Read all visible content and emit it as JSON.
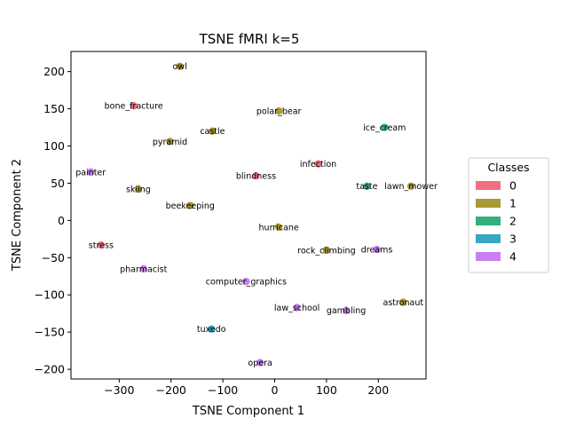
{
  "chart_data": {
    "type": "scatter",
    "title": "TSNE fMRI k=5",
    "xlabel": "TSNE Component 1",
    "ylabel": "TSNE Component 2",
    "xlim": [
      -393,
      292
    ],
    "ylim": [
      -213,
      227
    ],
    "xticks": [
      -300,
      -200,
      -100,
      0,
      100,
      200
    ],
    "yticks": [
      -200,
      -150,
      -100,
      -50,
      0,
      50,
      100,
      150,
      200
    ],
    "xtick_labels": [
      "−300",
      "−200",
      "−100",
      "0",
      "100",
      "200"
    ],
    "ytick_labels": [
      "−200",
      "−150",
      "−100",
      "−50",
      "0",
      "50",
      "100",
      "150",
      "200"
    ],
    "grid": false,
    "legend": {
      "title": "Classes",
      "placement": "right",
      "entries": [
        {
          "label": "0",
          "color": "#f07080"
        },
        {
          "label": "1",
          "color": "#a99a33"
        },
        {
          "label": "2",
          "color": "#33b07a"
        },
        {
          "label": "3",
          "color": "#38a8c0"
        },
        {
          "label": "4",
          "color": "#c87ef0"
        }
      ]
    },
    "points": [
      {
        "label": "owl",
        "x": -183,
        "y": 207,
        "class": 1
      },
      {
        "label": "bone_fracture",
        "x": -272,
        "y": 154,
        "class": 0
      },
      {
        "label": "polar_bear",
        "x": 8,
        "y": 147,
        "class": 1
      },
      {
        "label": "castle",
        "x": -120,
        "y": 120,
        "class": 1
      },
      {
        "label": "ice_cream",
        "x": 212,
        "y": 125,
        "class": 2
      },
      {
        "label": "pyramid",
        "x": -202,
        "y": 106,
        "class": 1
      },
      {
        "label": "infection",
        "x": 84,
        "y": 76,
        "class": 0
      },
      {
        "label": "painter",
        "x": -355,
        "y": 65,
        "class": 4
      },
      {
        "label": "blindness",
        "x": -36,
        "y": 60,
        "class": 0
      },
      {
        "label": "taste",
        "x": 178,
        "y": 46,
        "class": 2
      },
      {
        "label": "lawn_mower",
        "x": 263,
        "y": 46,
        "class": 1
      },
      {
        "label": "skiing",
        "x": -263,
        "y": 42,
        "class": 1
      },
      {
        "label": "beekeeping",
        "x": -163,
        "y": 20,
        "class": 1
      },
      {
        "label": "hurricane",
        "x": 8,
        "y": -9,
        "class": 1
      },
      {
        "label": "stress",
        "x": -335,
        "y": -33,
        "class": 0
      },
      {
        "label": "rock_climbing",
        "x": 100,
        "y": -40,
        "class": 1
      },
      {
        "label": "dreams",
        "x": 197,
        "y": -39,
        "class": 4
      },
      {
        "label": "pharmacist",
        "x": -253,
        "y": -65,
        "class": 4
      },
      {
        "label": "computer_graphics",
        "x": -55,
        "y": -82,
        "class": 4
      },
      {
        "label": "astronaut",
        "x": 248,
        "y": -110,
        "class": 1
      },
      {
        "label": "law_school",
        "x": 43,
        "y": -117,
        "class": 4
      },
      {
        "label": "gambling",
        "x": 138,
        "y": -121,
        "class": 4
      },
      {
        "label": "tuxedo",
        "x": -122,
        "y": -146,
        "class": 3
      },
      {
        "label": "opera",
        "x": -28,
        "y": -191,
        "class": 4
      }
    ]
  }
}
